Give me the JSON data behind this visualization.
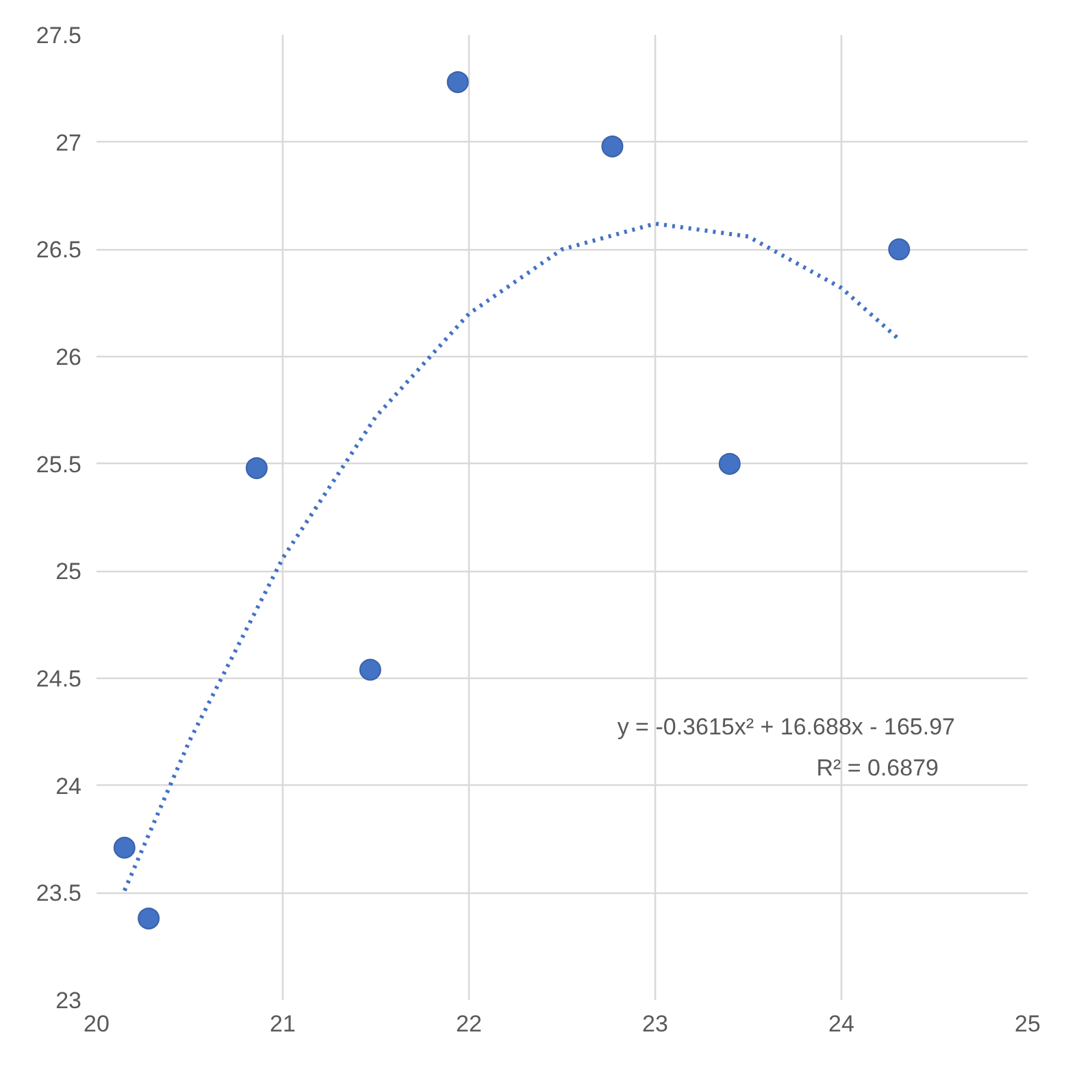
{
  "chart_data": {
    "type": "scatter",
    "xlim": [
      20,
      25
    ],
    "xticks": [
      20,
      21,
      22,
      23,
      24,
      25
    ],
    "ylim": [
      23,
      27.5
    ],
    "yticks": [
      23,
      23.5,
      24,
      24.5,
      25,
      25.5,
      26,
      26.5,
      27,
      27.5
    ],
    "grid": true,
    "series": [
      {
        "color": "#4472c4",
        "marker": "circle",
        "x": [
          20.15,
          20.28,
          20.86,
          21.47,
          21.94,
          22.77,
          23.4,
          24.31
        ],
        "values": [
          23.71,
          23.38,
          25.48,
          24.54,
          27.28,
          26.98,
          25.5,
          26.5
        ]
      },
      {
        "type": "line",
        "color": "#4472c4",
        "line_style": "dotted",
        "marker": "none",
        "x": [
          20.15,
          20.5,
          21,
          21.5,
          22,
          22.5,
          23,
          23.5,
          24,
          24.31
        ],
        "values": [
          23.51,
          24.21,
          25.06,
          25.72,
          26.2,
          26.5,
          26.62,
          26.56,
          26.32,
          26.08
        ]
      }
    ],
    "annotations": [
      "y = -0.3615x² + 16.688x - 165.97",
      "R² = 0.6879"
    ]
  }
}
